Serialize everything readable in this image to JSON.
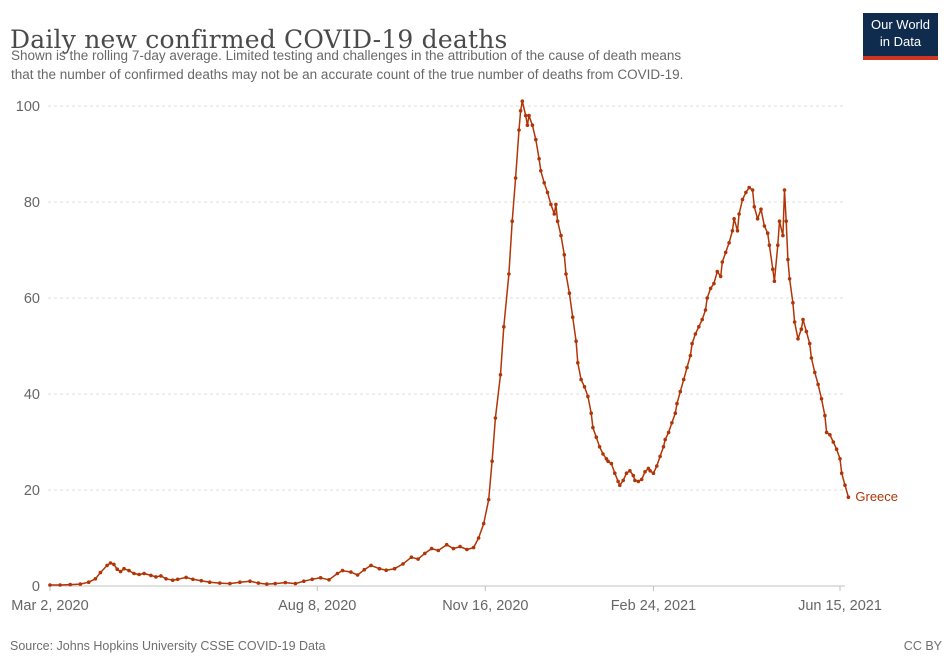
{
  "header": {
    "title": "Daily new confirmed COVID-19 deaths",
    "subtitle_lines": [
      "Shown is the rolling 7-day average. Limited testing and challenges in the attribution of the cause of death means",
      "that the number of confirmed deaths may not be an accurate count of the true number of deaths from COVID-19."
    ],
    "logo": {
      "line1": "Our World",
      "line2": "in Data"
    }
  },
  "footer": {
    "source": "Source: Johns Hopkins University CSSE COVID-19 Data",
    "license": "CC BY"
  },
  "colors": {
    "series": "#b13507",
    "grid": "#dddddd",
    "axis_line": "#c0c0c0",
    "axis_text": "#666666",
    "logo_bg": "#0f2c4e",
    "logo_stripe": "#cf3520"
  },
  "chart_data": {
    "type": "line",
    "title": "Daily new confirmed COVID-19 deaths",
    "subtitle": "Shown is the rolling 7-day average. Limited testing and challenges in the attribution of the cause of death means that the number of confirmed deaths may not be an accurate count of the true number of deaths from COVID-19.",
    "entity": "Greece",
    "x_unit": "days since Mar 2, 2020",
    "xlim": [
      0,
      476
    ],
    "ylim": [
      0,
      100
    ],
    "grid": "dashed-horizontal",
    "y_ticks": [
      0,
      20,
      40,
      60,
      80,
      100
    ],
    "x_ticks": [
      {
        "day": 0,
        "label": "Mar 2, 2020"
      },
      {
        "day": 159,
        "label": "Aug 8, 2020"
      },
      {
        "day": 259,
        "label": "Nov 16, 2020"
      },
      {
        "day": 359,
        "label": "Feb 24, 2021"
      },
      {
        "day": 470,
        "label": "Jun 15, 2021"
      }
    ],
    "series": [
      {
        "name": "Greece",
        "points": [
          [
            0,
            0.2
          ],
          [
            6,
            0.2
          ],
          [
            12,
            0.3
          ],
          [
            18,
            0.4
          ],
          [
            23,
            0.8
          ],
          [
            27,
            1.5
          ],
          [
            30,
            2.8
          ],
          [
            34,
            4.3
          ],
          [
            36,
            4.8
          ],
          [
            38,
            4.5
          ],
          [
            40,
            3.5
          ],
          [
            42,
            3.0
          ],
          [
            44,
            3.6
          ],
          [
            47,
            3.2
          ],
          [
            50,
            2.6
          ],
          [
            53,
            2.4
          ],
          [
            56,
            2.6
          ],
          [
            60,
            2.2
          ],
          [
            63,
            1.9
          ],
          [
            66,
            2.1
          ],
          [
            69,
            1.5
          ],
          [
            73,
            1.2
          ],
          [
            76,
            1.4
          ],
          [
            81,
            1.8
          ],
          [
            85,
            1.4
          ],
          [
            90,
            1.1
          ],
          [
            95,
            0.8
          ],
          [
            101,
            0.6
          ],
          [
            107,
            0.5
          ],
          [
            113,
            0.8
          ],
          [
            119,
            1.0
          ],
          [
            124,
            0.6
          ],
          [
            129,
            0.4
          ],
          [
            134,
            0.5
          ],
          [
            140,
            0.7
          ],
          [
            146,
            0.5
          ],
          [
            151,
            1.0
          ],
          [
            156,
            1.4
          ],
          [
            161,
            1.7
          ],
          [
            166,
            1.3
          ],
          [
            171,
            2.6
          ],
          [
            174,
            3.2
          ],
          [
            179,
            2.9
          ],
          [
            183,
            2.3
          ],
          [
            187,
            3.4
          ],
          [
            191,
            4.3
          ],
          [
            196,
            3.6
          ],
          [
            200,
            3.3
          ],
          [
            205,
            3.6
          ],
          [
            210,
            4.6
          ],
          [
            215,
            6.0
          ],
          [
            219,
            5.6
          ],
          [
            223,
            6.8
          ],
          [
            227,
            7.8
          ],
          [
            231,
            7.4
          ],
          [
            236,
            8.6
          ],
          [
            240,
            7.8
          ],
          [
            244,
            8.2
          ],
          [
            248,
            7.6
          ],
          [
            252,
            8.0
          ],
          [
            255,
            10.0
          ],
          [
            258,
            13
          ],
          [
            261,
            18
          ],
          [
            263,
            26
          ],
          [
            265,
            35
          ],
          [
            268,
            44
          ],
          [
            270,
            54
          ],
          [
            273,
            65
          ],
          [
            275,
            76
          ],
          [
            277,
            85
          ],
          [
            279,
            95
          ],
          [
            280,
            99
          ],
          [
            281,
            101
          ],
          [
            283,
            98
          ],
          [
            284,
            96
          ],
          [
            285,
            98
          ],
          [
            287,
            96
          ],
          [
            289,
            93
          ],
          [
            291,
            89
          ],
          [
            292,
            86.5
          ],
          [
            294,
            84
          ],
          [
            296,
            82
          ],
          [
            298,
            79.5
          ],
          [
            300,
            77.5
          ],
          [
            301,
            79.5
          ],
          [
            302,
            76
          ],
          [
            304,
            73
          ],
          [
            306,
            69
          ],
          [
            307,
            65
          ],
          [
            309,
            61
          ],
          [
            311,
            56
          ],
          [
            313,
            51
          ],
          [
            314,
            46.5
          ],
          [
            316,
            43
          ],
          [
            318,
            41.5
          ],
          [
            320,
            39.5
          ],
          [
            322,
            36
          ],
          [
            323,
            33
          ],
          [
            325,
            31
          ],
          [
            327,
            29
          ],
          [
            329,
            27.5
          ],
          [
            331,
            26.5
          ],
          [
            332,
            26
          ],
          [
            334,
            25.5
          ],
          [
            336,
            23.5
          ],
          [
            338,
            21.8
          ],
          [
            339,
            21
          ],
          [
            341,
            22
          ],
          [
            343,
            23.5
          ],
          [
            345,
            24
          ],
          [
            347,
            23
          ],
          [
            348,
            22
          ],
          [
            350,
            21.8
          ],
          [
            352,
            22.2
          ],
          [
            354,
            23.8
          ],
          [
            356,
            24.5
          ],
          [
            357,
            24
          ],
          [
            359,
            23.5
          ],
          [
            361,
            25
          ],
          [
            363,
            27
          ],
          [
            365,
            29
          ],
          [
            366,
            30.5
          ],
          [
            368,
            32
          ],
          [
            370,
            34
          ],
          [
            372,
            36
          ],
          [
            373,
            38
          ],
          [
            375,
            40.5
          ],
          [
            377,
            43
          ],
          [
            379,
            45.5
          ],
          [
            381,
            48
          ],
          [
            382,
            50.5
          ],
          [
            384,
            52.5
          ],
          [
            386,
            54
          ],
          [
            388,
            55.5
          ],
          [
            390,
            57.5
          ],
          [
            391,
            60
          ],
          [
            393,
            62
          ],
          [
            395,
            63
          ],
          [
            397,
            65.5
          ],
          [
            399,
            64.5
          ],
          [
            400,
            67.5
          ],
          [
            402,
            69.5
          ],
          [
            404,
            71.5
          ],
          [
            406,
            74
          ],
          [
            407,
            76.5
          ],
          [
            409,
            74
          ],
          [
            410,
            77.5
          ],
          [
            412,
            80.5
          ],
          [
            414,
            82
          ],
          [
            416,
            83
          ],
          [
            418,
            82.5
          ],
          [
            419,
            79
          ],
          [
            421,
            76.5
          ],
          [
            423,
            78.5
          ],
          [
            425,
            75
          ],
          [
            427,
            73.5
          ],
          [
            428,
            71
          ],
          [
            430,
            66
          ],
          [
            431,
            63.5
          ],
          [
            433,
            71
          ],
          [
            434,
            76
          ],
          [
            436,
            73
          ],
          [
            437,
            82.5
          ],
          [
            438,
            76
          ],
          [
            439,
            68
          ],
          [
            440,
            64
          ],
          [
            442,
            59
          ],
          [
            443,
            55
          ],
          [
            445,
            51.5
          ],
          [
            447,
            53.5
          ],
          [
            448,
            55.5
          ],
          [
            450,
            53
          ],
          [
            452,
            50.5
          ],
          [
            453,
            47.5
          ],
          [
            455,
            44.5
          ],
          [
            457,
            42
          ],
          [
            459,
            39
          ],
          [
            461,
            35.5
          ],
          [
            462,
            32
          ],
          [
            464,
            31.5
          ],
          [
            466,
            30
          ],
          [
            468,
            28.5
          ],
          [
            470,
            26.5
          ],
          [
            471,
            23.5
          ],
          [
            473,
            21
          ],
          [
            475,
            18.5
          ]
        ]
      }
    ]
  }
}
